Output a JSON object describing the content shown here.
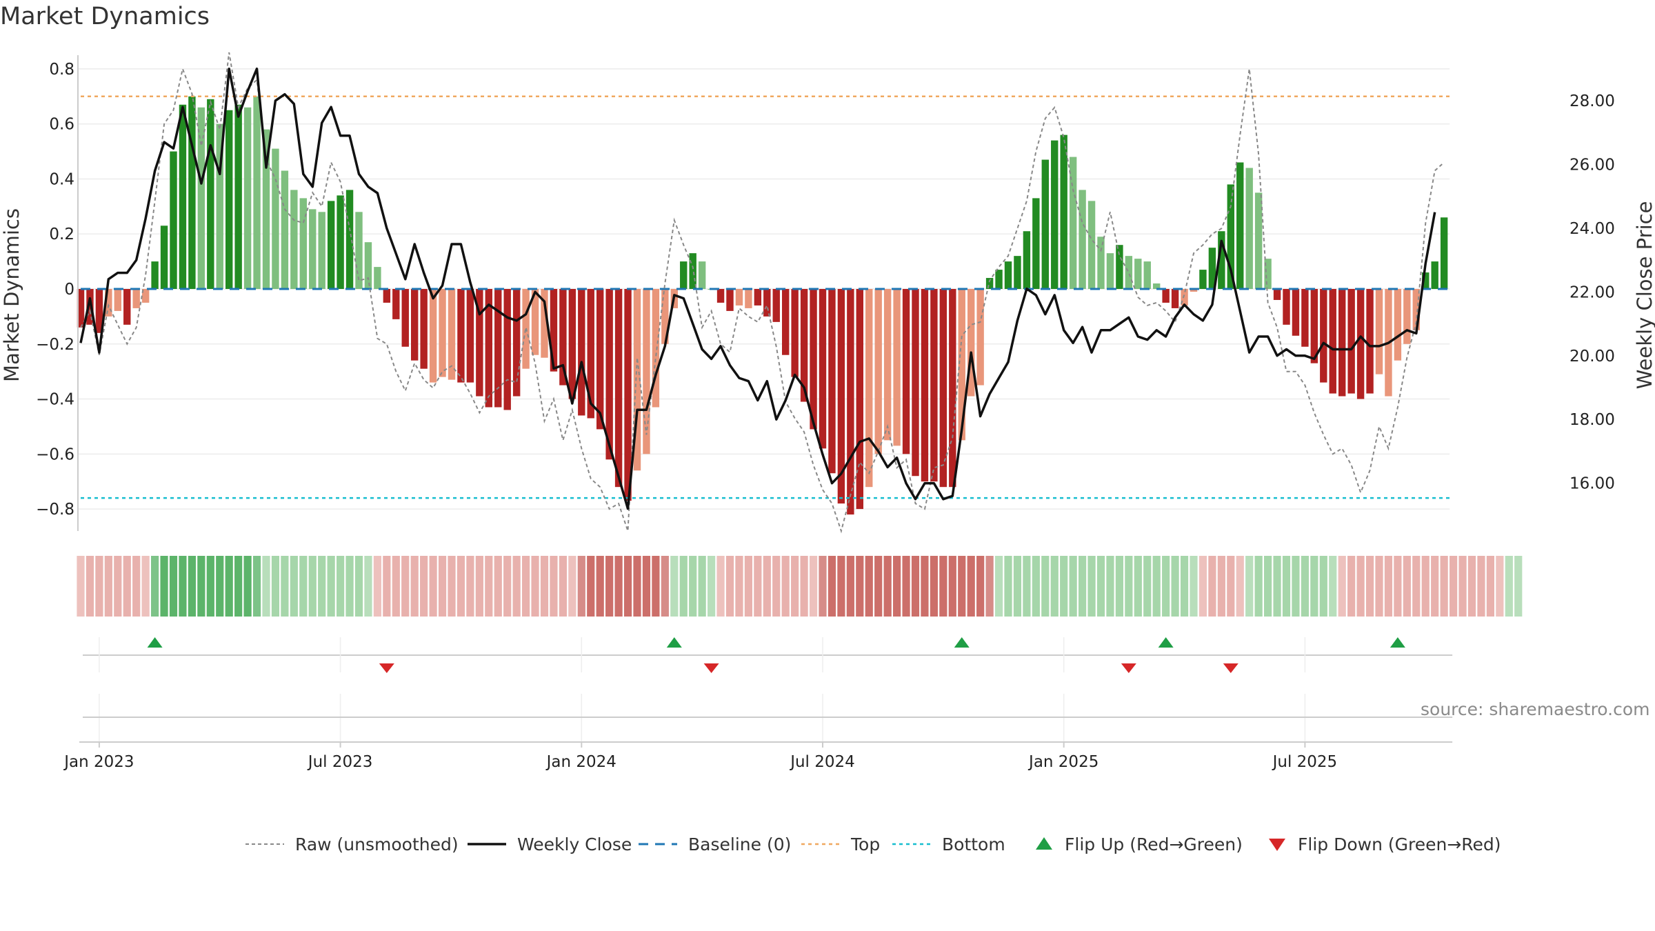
{
  "title": "Market Dynamics",
  "source": "source: sharemaestro.com",
  "chart_data": {
    "type": "bar",
    "title": "Market Dynamics",
    "y_left_label": "Market Dynamics",
    "y_right_label": "Weekly Close Price",
    "y_left_ticks": [
      "0.8",
      "0.6",
      "0.4",
      "0.2",
      "0",
      "−0.2",
      "−0.4",
      "−0.6",
      "−0.8"
    ],
    "y_left_tick_values": [
      0.8,
      0.6,
      0.4,
      0.2,
      0,
      -0.2,
      -0.4,
      -0.6,
      -0.8
    ],
    "y_right_ticks": [
      "28.00",
      "26.00",
      "24.00",
      "22.00",
      "20.00",
      "18.00",
      "16.00"
    ],
    "y_right_tick_values": [
      28,
      26,
      24,
      22,
      20,
      18,
      16
    ],
    "ylim_left": [
      -0.88,
      0.87
    ],
    "ylim_right": [
      14.5,
      29.6
    ],
    "x_ticks": [
      "Jan 2023",
      "Jul 2023",
      "Jan 2024",
      "Jul 2024",
      "Jan 2025",
      "Jul 2025"
    ],
    "x_start": "2022-12-19",
    "x_step_days": 7,
    "x_tick_weeks": [
      2,
      28,
      54,
      80,
      106,
      132
    ],
    "top_level": 0.7,
    "bottom_level": -0.76,
    "baseline": 0,
    "grid": true,
    "legend_position": "bottom-center",
    "legend": [
      "Raw (unsmoothed)",
      "Weekly Close",
      "Baseline (0)",
      "Top",
      "Bottom",
      "Flip Up (Red→Green)",
      "Flip Down (Green→Red)"
    ],
    "colors": {
      "green_strong": "#228b22",
      "green_light": "#7fbf7f",
      "red_strong": "#b22222",
      "red_light": "#e9967a",
      "price": "#111111",
      "raw": "#888888",
      "baseline": "#1f77b4",
      "top": "#f0a860",
      "bottom": "#17becf",
      "flip_up": "#1f9e45",
      "flip_down": "#d62728"
    },
    "bars": [
      -0.14,
      -0.13,
      -0.16,
      -0.1,
      -0.08,
      -0.13,
      -0.07,
      -0.05,
      0.1,
      0.23,
      0.5,
      0.67,
      0.7,
      0.66,
      0.69,
      0.6,
      0.65,
      0.67,
      0.66,
      0.7,
      0.58,
      0.51,
      0.43,
      0.36,
      0.33,
      0.29,
      0.28,
      0.32,
      0.34,
      0.36,
      0.28,
      0.17,
      0.08,
      -0.05,
      -0.11,
      -0.21,
      -0.26,
      -0.29,
      -0.34,
      -0.32,
      -0.33,
      -0.34,
      -0.34,
      -0.39,
      -0.43,
      -0.43,
      -0.44,
      -0.39,
      -0.29,
      -0.24,
      -0.25,
      -0.3,
      -0.35,
      -0.4,
      -0.46,
      -0.47,
      -0.51,
      -0.62,
      -0.72,
      -0.77,
      -0.66,
      -0.6,
      -0.43,
      -0.2,
      -0.07,
      0.1,
      0.13,
      0.1,
      0,
      -0.05,
      -0.08,
      -0.06,
      -0.07,
      -0.06,
      -0.1,
      -0.12,
      -0.24,
      -0.32,
      -0.41,
      -0.51,
      -0.58,
      -0.67,
      -0.78,
      -0.82,
      -0.8,
      -0.72,
      -0.6,
      -0.55,
      -0.57,
      -0.6,
      -0.68,
      -0.7,
      -0.7,
      -0.72,
      -0.72,
      -0.55,
      -0.39,
      -0.35,
      0.04,
      0.07,
      0.1,
      0.12,
      0.21,
      0.33,
      0.47,
      0.54,
      0.56,
      0.48,
      0.36,
      0.32,
      0.19,
      0.13,
      0.16,
      0.12,
      0.11,
      0.1,
      0.02,
      -0.05,
      -0.07,
      -0.06,
      -0.01,
      0.07,
      0.15,
      0.21,
      0.38,
      0.46,
      0.44,
      0.35,
      0.11,
      -0.04,
      -0.13,
      -0.17,
      -0.21,
      -0.27,
      -0.34,
      -0.38,
      -0.39,
      -0.38,
      -0.4,
      -0.38,
      -0.31,
      -0.39,
      -0.26,
      -0.2,
      -0.15,
      0.06,
      0.1,
      0.26
    ],
    "bar_colors": [
      "r",
      "r",
      "R",
      "L",
      "L",
      "R",
      "L",
      "L",
      "G",
      "G",
      "G",
      "G",
      "G",
      "L",
      "G",
      "L",
      "G",
      "G",
      "L",
      "L",
      "L",
      "L",
      "L",
      "L",
      "L",
      "L",
      "L",
      "G",
      "G",
      "G",
      "L",
      "L",
      "L",
      "R",
      "R",
      "R",
      "R",
      "R",
      "L",
      "L",
      "L",
      "R",
      "R",
      "R",
      "R",
      "R",
      "R",
      "R",
      "L",
      "L",
      "L",
      "R",
      "R",
      "R",
      "R",
      "R",
      "R",
      "R",
      "R",
      "R",
      "L",
      "L",
      "L",
      "L",
      "L",
      "G",
      "G",
      "L",
      "L",
      "R",
      "R",
      "L",
      "L",
      "R",
      "R",
      "R",
      "R",
      "R",
      "R",
      "R",
      "R",
      "R",
      "R",
      "R",
      "R",
      "L",
      "L",
      "L",
      "L",
      "R",
      "R",
      "R",
      "R",
      "R",
      "R",
      "L",
      "L",
      "L",
      "G",
      "G",
      "G",
      "G",
      "G",
      "G",
      "G",
      "G",
      "G",
      "L",
      "L",
      "L",
      "L",
      "L",
      "G",
      "L",
      "L",
      "L",
      "L",
      "R",
      "R",
      "L",
      "L",
      "G",
      "G",
      "G",
      "G",
      "G",
      "L",
      "L",
      "L",
      "R",
      "R",
      "R",
      "R",
      "R",
      "R",
      "R",
      "R",
      "R",
      "R",
      "R",
      "L",
      "L",
      "L",
      "L",
      "L",
      "G",
      "G",
      "G"
    ],
    "price": [
      20.4,
      21.8,
      20.1,
      22.4,
      22.6,
      22.6,
      23.0,
      24.3,
      25.8,
      26.7,
      26.5,
      27.8,
      26.6,
      25.4,
      26.6,
      25.7,
      29.0,
      27.5,
      28.3,
      29.0,
      25.9,
      28.0,
      28.2,
      27.9,
      25.7,
      25.3,
      27.3,
      27.8,
      26.9,
      26.9,
      25.7,
      25.3,
      25.1,
      24.0,
      23.2,
      22.4,
      23.5,
      22.6,
      21.8,
      22.2,
      23.5,
      23.5,
      22.3,
      21.3,
      21.6,
      21.4,
      21.2,
      21.1,
      21.3,
      22.0,
      21.7,
      19.6,
      19.7,
      18.5,
      19.8,
      18.5,
      18.2,
      17.2,
      16.2,
      15.2,
      18.3,
      18.3,
      19.4,
      20.3,
      21.9,
      21.8,
      21.0,
      20.2,
      19.9,
      20.3,
      19.7,
      19.3,
      19.2,
      18.6,
      19.2,
      18.0,
      18.6,
      19.4,
      19.0,
      17.9,
      16.9,
      16.0,
      16.3,
      16.8,
      17.3,
      17.4,
      17.0,
      16.5,
      16.8,
      16.0,
      15.5,
      16.0,
      16.0,
      15.5,
      15.6,
      17.7,
      20.1,
      18.1,
      18.8,
      19.3,
      19.8,
      21.1,
      22.1,
      21.9,
      21.3,
      21.9,
      20.8,
      20.4,
      20.9,
      20.1,
      20.8,
      20.8,
      21.0,
      21.2,
      20.6,
      20.5,
      20.8,
      20.6,
      21.2,
      21.6,
      21.3,
      21.1,
      21.6,
      23.6,
      22.7,
      21.4,
      20.1,
      20.6,
      20.6,
      20.0,
      20.2,
      20.0,
      20.0,
      19.9,
      20.4,
      20.2,
      20.2,
      20.2,
      20.6,
      20.3,
      20.3,
      20.4,
      20.6,
      20.8,
      20.7,
      22.9,
      24.5
    ],
    "raw": [
      -0.14,
      -0.08,
      -0.24,
      -0.06,
      -0.13,
      -0.2,
      -0.14,
      0.05,
      0.32,
      0.6,
      0.65,
      0.8,
      0.71,
      0.52,
      0.68,
      0.58,
      0.86,
      0.66,
      0.73,
      0.76,
      0.47,
      0.4,
      0.29,
      0.25,
      0.24,
      0.35,
      0.3,
      0.46,
      0.39,
      0.22,
      0.03,
      0.04,
      -0.18,
      -0.2,
      -0.3,
      -0.37,
      -0.27,
      -0.33,
      -0.36,
      -0.3,
      -0.28,
      -0.32,
      -0.38,
      -0.45,
      -0.39,
      -0.36,
      -0.33,
      -0.34,
      -0.14,
      -0.27,
      -0.48,
      -0.4,
      -0.55,
      -0.44,
      -0.58,
      -0.69,
      -0.72,
      -0.8,
      -0.78,
      -0.88,
      -0.25,
      -0.53,
      -0.25,
      0.02,
      0.25,
      0.16,
      0.08,
      -0.14,
      -0.08,
      -0.2,
      -0.23,
      -0.07,
      -0.1,
      -0.12,
      -0.06,
      -0.21,
      -0.41,
      -0.47,
      -0.52,
      -0.64,
      -0.73,
      -0.78,
      -0.88,
      -0.75,
      -0.63,
      -0.67,
      -0.59,
      -0.5,
      -0.65,
      -0.62,
      -0.78,
      -0.8,
      -0.65,
      -0.64,
      -0.54,
      -0.17,
      -0.13,
      -0.12,
      0.03,
      0.08,
      0.12,
      0.22,
      0.32,
      0.5,
      0.62,
      0.66,
      0.55,
      0.36,
      0.24,
      0.18,
      0.14,
      0.28,
      0.12,
      0.06,
      -0.03,
      -0.06,
      -0.05,
      -0.08,
      -0.12,
      -0.02,
      0.13,
      0.16,
      0.2,
      0.22,
      0.3,
      0.56,
      0.8,
      0.49,
      -0.05,
      -0.14,
      -0.3,
      -0.3,
      -0.35,
      -0.45,
      -0.53,
      -0.6,
      -0.58,
      -0.64,
      -0.74,
      -0.66,
      -0.5,
      -0.58,
      -0.43,
      -0.25,
      -0.12,
      0.24,
      0.43,
      0.46
    ],
    "band": [
      "r",
      "r",
      "r",
      "r",
      "r",
      "r",
      "r",
      "r",
      "G",
      "G",
      "G",
      "G",
      "G",
      "G",
      "G",
      "G",
      "G",
      "G",
      "G",
      "G",
      "g",
      "g",
      "g",
      "g",
      "g",
      "g",
      "g",
      "g",
      "g",
      "g",
      "g",
      "g",
      "r",
      "r",
      "r",
      "r",
      "r",
      "r",
      "r",
      "r",
      "r",
      "r",
      "r",
      "r",
      "r",
      "r",
      "r",
      "r",
      "r",
      "r",
      "r",
      "r",
      "r",
      "r",
      "R",
      "R",
      "R",
      "R",
      "R",
      "R",
      "R",
      "R",
      "R",
      "R",
      "g",
      "g",
      "g",
      "g",
      "g",
      "r",
      "r",
      "r",
      "r",
      "r",
      "r",
      "r",
      "r",
      "r",
      "r",
      "r",
      "R",
      "R",
      "R",
      "R",
      "R",
      "R",
      "R",
      "R",
      "R",
      "R",
      "R",
      "R",
      "R",
      "R",
      "R",
      "R",
      "R",
      "R",
      "R",
      "g",
      "g",
      "g",
      "g",
      "g",
      "g",
      "g",
      "g",
      "g",
      "g",
      "g",
      "g",
      "g",
      "g",
      "g",
      "g",
      "g",
      "g",
      "g",
      "g",
      "g",
      "g",
      "r",
      "r",
      "r",
      "r",
      "r",
      "g",
      "g",
      "g",
      "g",
      "g",
      "g",
      "g",
      "g",
      "g",
      "g",
      "r",
      "r",
      "r",
      "r",
      "r",
      "r",
      "r",
      "r",
      "r",
      "r",
      "r",
      "r",
      "r",
      "r",
      "r",
      "r",
      "r",
      "r",
      "g",
      "g"
    ],
    "flips_up_weeks": [
      8,
      64,
      95,
      117,
      142
    ],
    "flips_down_weeks": [
      33,
      68,
      113,
      124
    ]
  }
}
